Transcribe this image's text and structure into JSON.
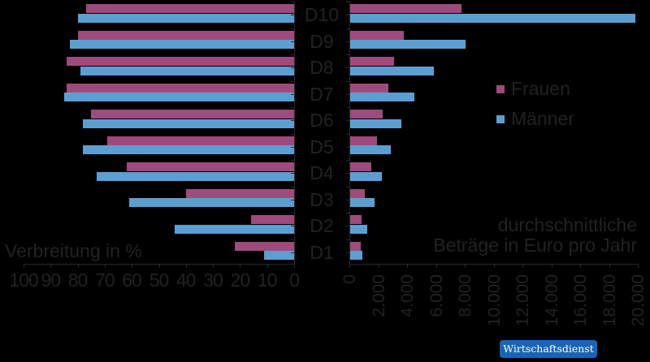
{
  "chart_data": [
    {
      "type": "bar",
      "orientation": "horizontal",
      "direction": "reversed",
      "title": "",
      "annotation": "Verbreitung in %",
      "xlabel": "Verbreitung in %",
      "ylabel": "",
      "xlim": [
        0,
        100
      ],
      "x_ticks": [
        "100",
        "90",
        "80",
        "70",
        "60",
        "50",
        "40",
        "30",
        "20",
        "10",
        "0"
      ],
      "categories": [
        "D10",
        "D9",
        "D8",
        "D7",
        "D6",
        "D5",
        "D4",
        "D3",
        "D2",
        "D1"
      ],
      "series": [
        {
          "name": "Frauen",
          "color": "#9e4a7c",
          "values": [
            77,
            80,
            84,
            84,
            75,
            69,
            62,
            40,
            16,
            22
          ]
        },
        {
          "name": "Männer",
          "color": "#5b9fd2",
          "values": [
            80,
            83,
            79,
            85,
            78,
            78,
            73,
            61,
            44,
            11
          ]
        }
      ],
      "grid": false
    },
    {
      "type": "bar",
      "orientation": "horizontal",
      "title": "",
      "annotation": "durchschnittliche Beträge in Euro pro Jahr",
      "xlabel": "durchschnittliche Beträge in Euro pro Jahr",
      "ylabel": "",
      "xlim": [
        0,
        20000
      ],
      "x_ticks": [
        "0",
        "2.000",
        "4.000",
        "6.000",
        "8.000",
        "10.000",
        "12.000",
        "14.000",
        "16.000",
        "18.000",
        "20.000"
      ],
      "categories": [
        "D10",
        "D9",
        "D8",
        "D7",
        "D6",
        "D5",
        "D4",
        "D3",
        "D2",
        "D1"
      ],
      "series": [
        {
          "name": "Frauen",
          "color": "#9e4a7c",
          "values": [
            7700,
            3700,
            3050,
            2650,
            2250,
            1850,
            1450,
            1000,
            800,
            750
          ]
        },
        {
          "name": "Männer",
          "color": "#5b9fd2",
          "values": [
            19800,
            8000,
            5800,
            4450,
            3550,
            2800,
            2200,
            1700,
            1200,
            850
          ]
        }
      ],
      "legend": {
        "position": "right-middle",
        "entries": [
          "Frauen",
          "Männer"
        ]
      },
      "grid": false
    }
  ],
  "labels": {
    "left_annotation": "Verbreitung in %",
    "right_annotation_line1": "durchschnittliche",
    "right_annotation_line2": "Beträge in Euro pro Jahr",
    "legend_frauen": "Frauen",
    "legend_maenner": "Männer",
    "badge": "Wirtschaftsdienst"
  },
  "colors": {
    "frauen": "#9e4a7c",
    "maenner": "#5b9fd2",
    "badge": "#1566b8",
    "background": "#000000"
  }
}
